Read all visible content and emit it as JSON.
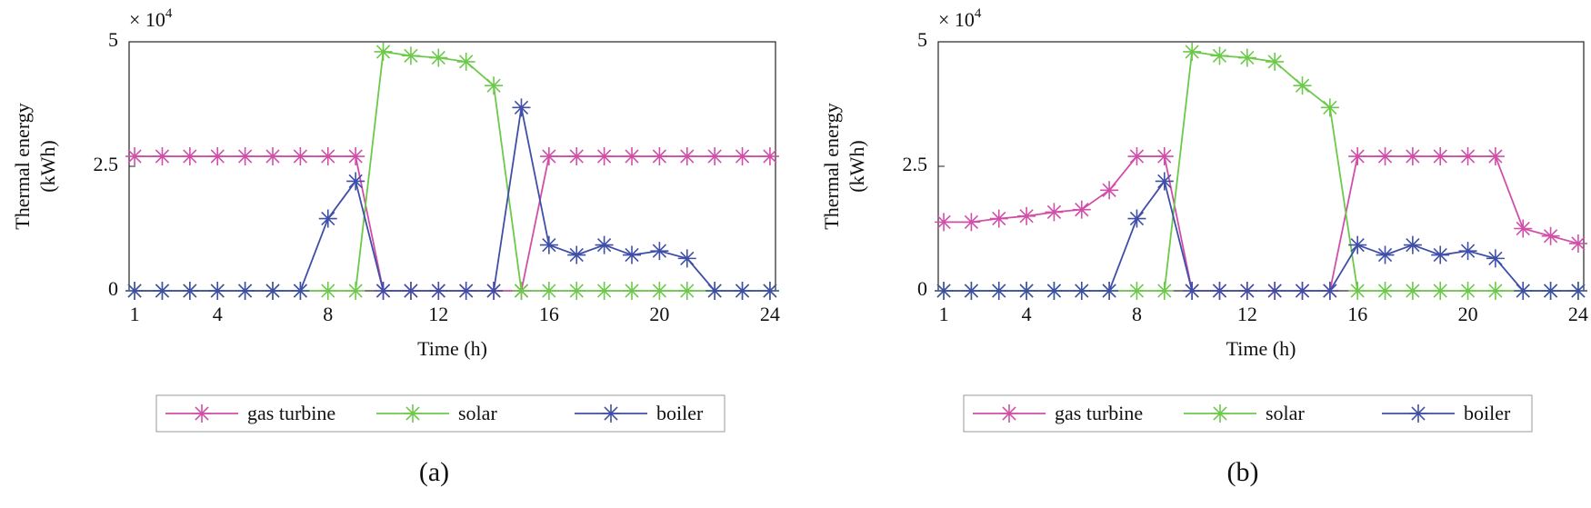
{
  "chart_data": [
    {
      "type": "line",
      "caption": "(a)",
      "xlabel": "Time (h)",
      "ylabel": [
        "Thermal energy",
        "(kWh)"
      ],
      "y_multiplier": "× 10",
      "y_exponent": "4",
      "x": [
        1,
        2,
        3,
        4,
        5,
        6,
        7,
        8,
        9,
        10,
        11,
        12,
        13,
        14,
        15,
        16,
        17,
        18,
        19,
        20,
        21,
        22,
        23,
        24
      ],
      "xlim": [
        0.8,
        24.2
      ],
      "xticks": [
        1,
        4,
        8,
        12,
        16,
        20,
        24
      ],
      "ylim": [
        0,
        5
      ],
      "yticks": [
        0,
        2.5,
        5
      ],
      "series": [
        {
          "name": "gas turbine",
          "color": "#d04fa8",
          "values": [
            2.7,
            2.7,
            2.7,
            2.7,
            2.7,
            2.7,
            2.7,
            2.7,
            2.7,
            0,
            0,
            0,
            0,
            0,
            0,
            2.7,
            2.7,
            2.7,
            2.7,
            2.7,
            2.7,
            2.7,
            2.7,
            2.7
          ]
        },
        {
          "name": "solar",
          "color": "#6cc94a",
          "values": [
            0,
            0,
            0,
            0,
            0,
            0,
            0,
            0,
            0,
            4.8,
            4.72,
            4.68,
            4.6,
            4.12,
            0,
            0,
            0,
            0,
            0,
            0,
            0,
            0,
            0,
            0
          ]
        },
        {
          "name": "boiler",
          "color": "#3f4fa8",
          "values": [
            0,
            0,
            0,
            0,
            0,
            0,
            0,
            1.45,
            2.2,
            0,
            0,
            0,
            0,
            0,
            3.68,
            0.92,
            0.72,
            0.92,
            0.72,
            0.8,
            0.65,
            0,
            0,
            0
          ]
        }
      ]
    },
    {
      "type": "line",
      "caption": "(b)",
      "xlabel": "Time (h)",
      "ylabel": [
        "Thermal energy",
        "(kWh)"
      ],
      "y_multiplier": "× 10",
      "y_exponent": "4",
      "x": [
        1,
        2,
        3,
        4,
        5,
        6,
        7,
        8,
        9,
        10,
        11,
        12,
        13,
        14,
        15,
        16,
        17,
        18,
        19,
        20,
        21,
        22,
        23,
        24
      ],
      "xlim": [
        0.8,
        24.2
      ],
      "xticks": [
        1,
        4,
        8,
        12,
        16,
        20,
        24
      ],
      "ylim": [
        0,
        5
      ],
      "yticks": [
        0,
        2.5,
        5
      ],
      "series": [
        {
          "name": "gas turbine",
          "color": "#d04fa8",
          "values": [
            1.38,
            1.38,
            1.45,
            1.5,
            1.58,
            1.63,
            2.02,
            2.7,
            2.7,
            0,
            0,
            0,
            0,
            0,
            0,
            2.7,
            2.7,
            2.7,
            2.7,
            2.7,
            2.7,
            1.25,
            1.1,
            0.95
          ]
        },
        {
          "name": "solar",
          "color": "#6cc94a",
          "values": [
            0,
            0,
            0,
            0,
            0,
            0,
            0,
            0,
            0,
            4.8,
            4.72,
            4.68,
            4.6,
            4.12,
            3.68,
            0,
            0,
            0,
            0,
            0,
            0,
            0,
            0,
            0
          ]
        },
        {
          "name": "boiler",
          "color": "#3f4fa8",
          "values": [
            0,
            0,
            0,
            0,
            0,
            0,
            0,
            1.45,
            2.2,
            0,
            0,
            0,
            0,
            0,
            0,
            0.92,
            0.72,
            0.92,
            0.72,
            0.8,
            0.65,
            0,
            0,
            0
          ]
        }
      ]
    }
  ]
}
